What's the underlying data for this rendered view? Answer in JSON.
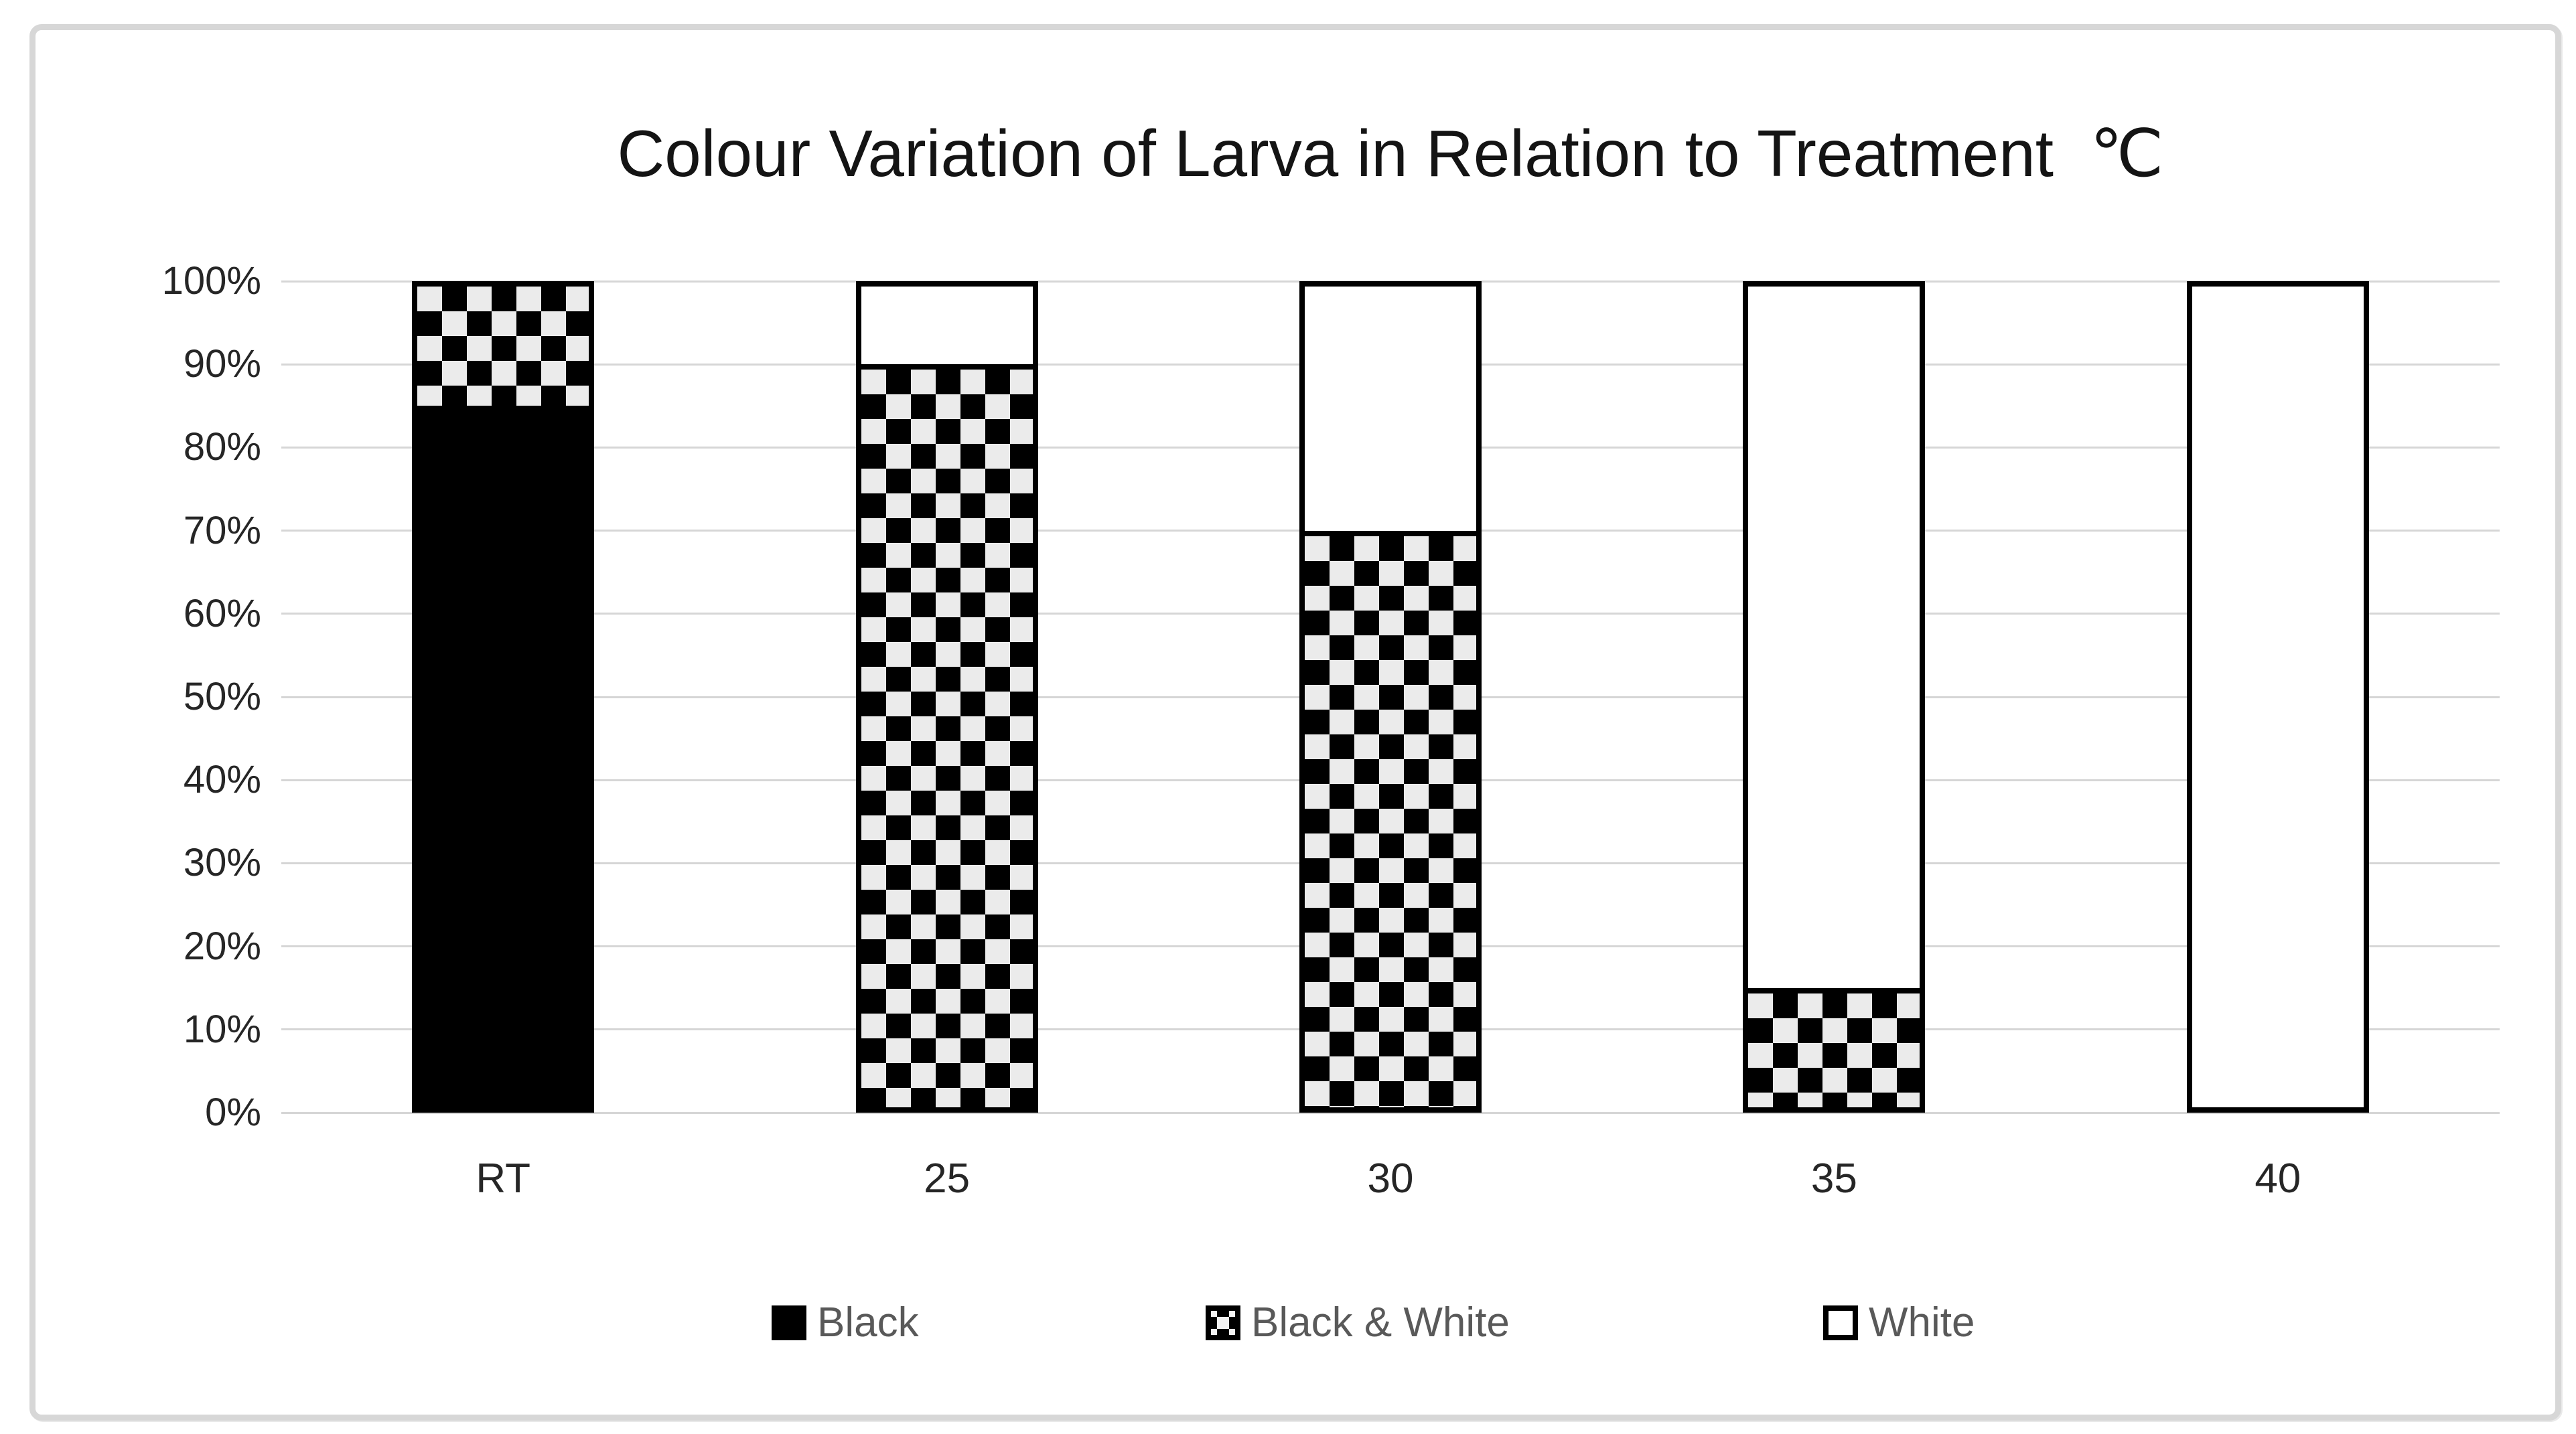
{
  "chart_data": {
    "type": "bar",
    "stacked": true,
    "orientation": "vertical",
    "title": "Colour Variation of Larva in Relation to Treatment  ℃",
    "categories": [
      "RT",
      "25",
      "30",
      "35",
      "40"
    ],
    "series": [
      {
        "name": "Black",
        "pattern": "solid-black",
        "values": [
          85,
          0,
          0,
          0,
          0
        ]
      },
      {
        "name": "Black & White",
        "pattern": "checker",
        "values": [
          15,
          90,
          70,
          15,
          0
        ]
      },
      {
        "name": "White",
        "pattern": "white",
        "values": [
          0,
          10,
          30,
          85,
          100
        ]
      }
    ],
    "y_ticks": [
      "100%",
      "90%",
      "80%",
      "70%",
      "60%",
      "50%",
      "40%",
      "30%",
      "20%",
      "10%",
      "0%"
    ],
    "ylim": [
      0,
      100
    ],
    "xlabel": "",
    "ylabel": "",
    "grid": true,
    "legend_position": "bottom",
    "colors": {
      "bar_fill_black": "#000000",
      "checker_dark": "#000000",
      "checker_light": "#ebebeb",
      "bar_fill_white": "#ffffff",
      "bar_border": "#000000",
      "gridline": "#d6d6d6",
      "axis_text": "#262626",
      "legend_text": "#595959",
      "title_text": "#141414",
      "frame_border": "#d7d7d7"
    }
  }
}
